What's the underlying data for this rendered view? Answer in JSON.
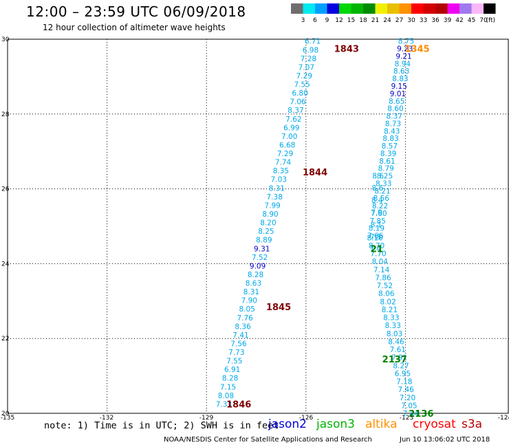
{
  "header": {
    "title": "12:00 – 23:59 UTC 06/09/2018",
    "subtitle": "12 hour collection of altimeter wave heights"
  },
  "scale": {
    "unit_label": "(ft)",
    "bins": [
      {
        "label": "3",
        "color": "#6e6e6e"
      },
      {
        "label": "6",
        "color": "#00eaf0"
      },
      {
        "label": "9",
        "color": "#00a0ff"
      },
      {
        "label": "12",
        "color": "#0000e0"
      },
      {
        "label": "15",
        "color": "#00d800"
      },
      {
        "label": "18",
        "color": "#00b400"
      },
      {
        "label": "21",
        "color": "#008c00"
      },
      {
        "label": "24",
        "color": "#f0f000"
      },
      {
        "label": "27",
        "color": "#e8c000"
      },
      {
        "label": "30",
        "color": "#ff9000"
      },
      {
        "label": "33",
        "color": "#ff0000"
      },
      {
        "label": "36",
        "color": "#d40000"
      },
      {
        "label": "39",
        "color": "#b40000"
      },
      {
        "label": "42",
        "color": "#f000f0"
      },
      {
        "label": "45",
        "color": "#a078f0"
      },
      {
        "label": "70",
        "color": "#f8b8f8"
      },
      {
        "label": "",
        "color": "#000000"
      }
    ]
  },
  "chart_data": {
    "type": "scatter",
    "xlim": [
      -135,
      -124
    ],
    "ylim": [
      20,
      30
    ],
    "x_ticks": [
      "-135",
      "-132",
      "-129",
      "-126",
      "-123",
      "-124"
    ],
    "y_ticks": [
      "20",
      "22",
      "24",
      "26",
      "28",
      "30"
    ],
    "grid": true,
    "colors": {
      "cyan": "#00a8e8",
      "navy": "#0000c8",
      "maroon": "#800000",
      "green": "#008000",
      "orange": "#ff8c00"
    },
    "tracks": [
      {
        "satellite": "jason2",
        "x_start": -126.04,
        "y_start": 29.95,
        "x_end": -128.72,
        "y_end": 20.25,
        "values": [
          "6.71",
          "6.98",
          "7.28",
          "7.07",
          "7.29",
          "7.55",
          "6.80",
          "7.06",
          "8.37",
          "7.62",
          "6.99",
          "7.00",
          "6.68",
          "7.29",
          "7.74",
          "8.35",
          "7.03",
          "8.31",
          "7.38",
          "7.99",
          "8.90",
          "8.20",
          "8.25",
          "8.89",
          "9.31",
          "7.52",
          "9.09",
          "8.28",
          "8.63",
          "8.31",
          "7.90",
          "8.05",
          "7.76",
          "8.36",
          "7.41",
          "7.56",
          "7.73",
          "7.55",
          "6.91",
          "8.28",
          "7.15",
          "8.08",
          "7.33"
        ],
        "highlight": [
          "9.31",
          "9.09"
        ]
      },
      {
        "satellite": "jason2",
        "x_start": -123.22,
        "y_start": 29.95,
        "x_end": -124.15,
        "y_end": 24.75,
        "values": [
          "8.75",
          "9.23",
          "9.21",
          "8.94",
          "8.63",
          "8.83",
          "9.15",
          "9.01",
          "8.65",
          "8.60",
          "8.37",
          "8.73",
          "8.43",
          "8.83",
          "8.57",
          "8.39",
          "8.61",
          "8.79",
          "8.25",
          "8.33",
          "8.21",
          "8.56",
          "8.22",
          "7.60",
          "7.85",
          "8.19",
          "7.66"
        ],
        "highlight": [
          "9.23",
          "9.21",
          "9.15",
          "9.01"
        ]
      },
      {
        "satellite": "jason2",
        "x_start": -124.16,
        "y_start": 24.7,
        "x_end": -123.08,
        "y_end": 20.0,
        "values": [
          "8.10",
          "8.70",
          "7.70",
          "8.04",
          "7.14",
          "7.86",
          "7.52",
          "8.06",
          "8.02",
          "8.21",
          "8.33",
          "8.33",
          "8.03",
          "8.46",
          "7.61",
          "7.91",
          "8.27",
          "6.95",
          "7.18",
          "7.46",
          "7.20",
          "7.05",
          "7.44"
        ],
        "highlight": []
      },
      {
        "satellite": "jason2",
        "x_start": -124.0,
        "y_start": 26.35,
        "x_end": -124.08,
        "y_end": 24.4,
        "values": [
          "8.6",
          "8.6",
          "8.4",
          "7.9",
          "8.1",
          "7.5",
          "7.4"
        ],
        "highlight": []
      }
    ],
    "time_labels": [
      {
        "text": "1843",
        "lon": -125.15,
        "lat": 29.75,
        "color": "maroon"
      },
      {
        "text": "1844",
        "lon": -126.1,
        "lat": 26.45,
        "color": "maroon"
      },
      {
        "text": "1845",
        "lon": -127.2,
        "lat": 22.85,
        "color": "maroon"
      },
      {
        "text": "1846",
        "lon": -128.4,
        "lat": 20.25,
        "color": "maroon"
      },
      {
        "text": "1345",
        "lon": -123.02,
        "lat": 29.75,
        "color": "orange"
      },
      {
        "text": "2137",
        "lon": -123.7,
        "lat": 21.45,
        "color": "green"
      },
      {
        "text": "2136",
        "lon": -122.9,
        "lat": 20.0,
        "color": "green"
      },
      {
        "text": "21",
        "lon": -124.05,
        "lat": 24.4,
        "color": "green"
      }
    ]
  },
  "legend": {
    "note": "note: 1) Time is in UTC; 2) SWH is in feet",
    "satellites": [
      {
        "name": "jason2",
        "color": "#0000e0"
      },
      {
        "name": "jason3",
        "color": "#00b400"
      },
      {
        "name": "altika",
        "color": "#ff9000"
      },
      {
        "name": "cryosat",
        "color": "#ff0000"
      },
      {
        "name": "s3a",
        "color": "#b40000"
      }
    ]
  },
  "footer": {
    "center": "NOAA/NESDIS Center for Satellite Applications and Research",
    "timestamp": "Jun 10 13:06:02 UTC 2018"
  }
}
